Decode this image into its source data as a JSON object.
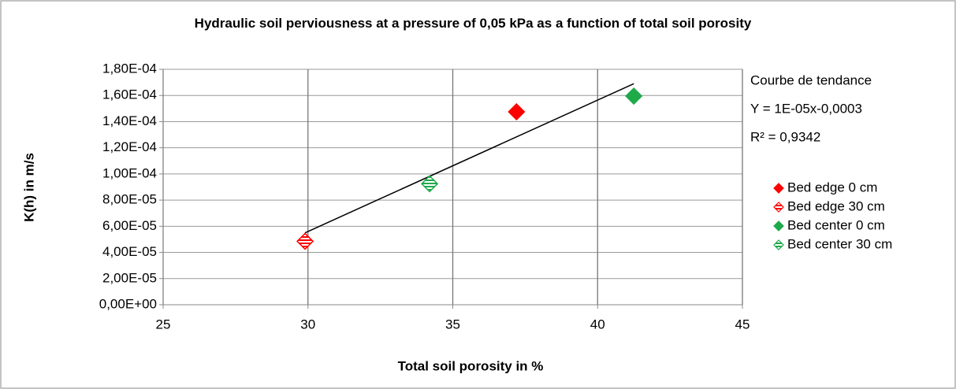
{
  "chart_data": {
    "type": "scatter",
    "title": "Hydraulic soil perviousness at a pressure of 0,05 kPa as a function of total soil porosity",
    "x_label": "Total soil porosity in %",
    "y_label": "K(h) in m/s",
    "xlim": [
      25,
      45
    ],
    "xticks": [
      25,
      30,
      35,
      40,
      45
    ],
    "ylim": [
      0,
      0.00018
    ],
    "yticks": [
      {
        "value": 0,
        "label": "0,00E+00"
      },
      {
        "value": 2e-05,
        "label": "2,00E-05"
      },
      {
        "value": 4e-05,
        "label": "4,00E-05"
      },
      {
        "value": 6e-05,
        "label": "6,00E-05"
      },
      {
        "value": 8e-05,
        "label": "8,00E-05"
      },
      {
        "value": 0.0001,
        "label": "1,00E-04"
      },
      {
        "value": 0.00012,
        "label": "1,20E-04"
      },
      {
        "value": 0.00014,
        "label": "1,40E-04"
      },
      {
        "value": 0.00016,
        "label": "1,60E-04"
      },
      {
        "value": 0.00018,
        "label": "1,80E-04"
      }
    ],
    "grid": true,
    "legend_position": "right",
    "annotations": [
      "Courbe de tendance",
      "Y = 1E-05x-0,0003",
      "R² = 0,9342"
    ],
    "series": [
      {
        "name": "Bed edge 0 cm",
        "color": "#ff0000",
        "marker": "filled",
        "x": [
          37.2
        ],
        "values": [
          0.0001475
        ]
      },
      {
        "name": "Bed edge 30 cm",
        "color": "#ff0000",
        "marker": "hatched",
        "x": [
          29.9
        ],
        "values": [
          4.85e-05
        ]
      },
      {
        "name": "Bed center 0 cm",
        "color": "#1faa4a",
        "marker": "filled",
        "x": [
          41.25
        ],
        "values": [
          0.0001595
        ]
      },
      {
        "name": "Bed center 30 cm",
        "color": "#1faa4a",
        "marker": "hatched",
        "x": [
          34.2
        ],
        "values": [
          9.25e-05
        ]
      }
    ],
    "trendline": {
      "color": "#000000",
      "x": [
        29.9,
        41.25
      ],
      "values": [
        5.5e-05,
        0.000169
      ]
    }
  }
}
